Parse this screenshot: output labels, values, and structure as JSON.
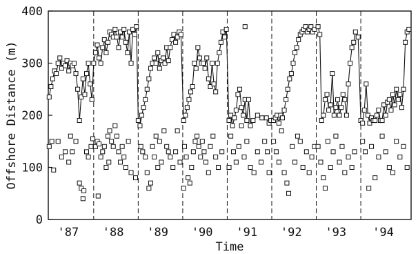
{
  "chart_data": {
    "type": "scatter",
    "title": "",
    "xlabel": "Time",
    "ylabel": "Offshore Distance (m)",
    "ylim": [
      0,
      400
    ],
    "yticks": [
      0,
      100,
      200,
      300,
      400
    ],
    "xlim": [
      1986.6,
      1994.75
    ],
    "categories": [
      "'87",
      "'88",
      "'89",
      "'90",
      "'91",
      "'92",
      "'93",
      "'94"
    ],
    "year_boundaries": [
      1987.62,
      1988.62,
      1989.62,
      1990.62,
      1991.62,
      1992.62,
      1993.62
    ],
    "grid": false,
    "marker": "open-square",
    "series": [
      {
        "connected": true,
        "x": [
          1986.62,
          1986.66,
          1986.7,
          1986.74,
          1986.78,
          1986.82,
          1986.86,
          1986.9,
          1986.94,
          1986.98,
          1987.02,
          1987.06,
          1987.1,
          1987.14,
          1987.18,
          1987.22,
          1987.26,
          1987.3,
          1987.34,
          1987.38,
          1987.42,
          1987.46,
          1987.5,
          1987.54,
          1987.58,
          1987.62,
          1987.66,
          1987.7,
          1987.74,
          1987.78,
          1987.82,
          1987.86,
          1987.9,
          1987.94,
          1987.98,
          1988.02,
          1988.06,
          1988.1,
          1988.14,
          1988.18,
          1988.22,
          1988.26,
          1988.3,
          1988.34,
          1988.38,
          1988.42,
          1988.46,
          1988.5,
          1988.54,
          1988.58,
          1988.62,
          1988.66,
          1988.7,
          1988.74,
          1988.78,
          1988.82,
          1988.86,
          1988.9,
          1988.94,
          1988.98,
          1989.02,
          1989.06,
          1989.1,
          1989.14,
          1989.18,
          1989.22,
          1989.26,
          1989.3,
          1989.34,
          1989.38,
          1989.42,
          1989.46,
          1989.5,
          1989.54,
          1989.58,
          1989.64,
          1989.68,
          1989.72,
          1989.76,
          1989.8,
          1989.84,
          1989.88,
          1989.92,
          1989.96,
          1990.0,
          1990.04,
          1990.08,
          1990.12,
          1990.16,
          1990.2,
          1990.24,
          1990.28,
          1990.32,
          1990.36,
          1990.4,
          1990.44,
          1990.48,
          1990.52,
          1990.56,
          1990.6,
          1990.66,
          1990.7,
          1990.74,
          1990.78,
          1990.82,
          1990.86,
          1990.9,
          1990.94,
          1990.98,
          1991.02,
          1991.06,
          1991.1,
          1991.14,
          1991.2,
          1991.3,
          1991.4,
          1991.5,
          1991.56,
          1991.6,
          1991.66,
          1991.7,
          1991.74,
          1991.78,
          1991.82,
          1991.86,
          1991.9,
          1991.94,
          1991.98,
          1992.02,
          1992.06,
          1992.1,
          1992.14,
          1992.18,
          1992.22,
          1992.26,
          1992.3,
          1992.34,
          1992.38,
          1992.42,
          1992.46,
          1992.5,
          1992.54,
          1992.58,
          1992.66,
          1992.7,
          1992.74,
          1992.78,
          1992.82,
          1992.86,
          1992.9,
          1992.94,
          1992.98,
          1993.02,
          1993.06,
          1993.1,
          1993.14,
          1993.18,
          1993.22,
          1993.26,
          1993.3,
          1993.34,
          1993.38,
          1993.42,
          1993.46,
          1993.5,
          1993.56,
          1993.62,
          1993.66,
          1993.7,
          1993.74,
          1993.78,
          1993.82,
          1993.86,
          1993.9,
          1993.94,
          1993.98,
          1994.02,
          1994.06,
          1994.1,
          1994.14,
          1994.18,
          1994.22,
          1994.26,
          1994.3,
          1994.34,
          1994.38,
          1994.42,
          1994.46,
          1994.5,
          1994.54,
          1994.58,
          1994.62,
          1994.66,
          1994.7
        ],
        "y": [
          235,
          255,
          270,
          285,
          280,
          300,
          310,
          290,
          300,
          295,
          305,
          285,
          300,
          295,
          300,
          280,
          250,
          190,
          235,
          270,
          240,
          280,
          300,
          260,
          230,
          300,
          320,
          335,
          310,
          300,
          330,
          345,
          320,
          340,
          360,
          355,
          350,
          365,
          350,
          330,
          360,
          350,
          365,
          340,
          320,
          360,
          300,
          365,
          355,
          370,
          190,
          180,
          200,
          215,
          230,
          250,
          270,
          290,
          300,
          310,
          300,
          320,
          290,
          305,
          310,
          300,
          330,
          305,
          330,
          345,
          355,
          340,
          350,
          360,
          355,
          190,
          200,
          215,
          230,
          245,
          255,
          300,
          290,
          330,
          310,
          300,
          300,
          290,
          310,
          270,
          255,
          300,
          260,
          245,
          300,
          320,
          340,
          360,
          350,
          365,
          190,
          200,
          180,
          195,
          210,
          240,
          250,
          215,
          200,
          230,
          190,
          230,
          180,
          190,
          200,
          195,
          195,
          185,
          190,
          190,
          195,
          200,
          185,
          200,
          195,
          210,
          230,
          250,
          270,
          280,
          300,
          320,
          330,
          345,
          355,
          360,
          365,
          370,
          360,
          365,
          370,
          360,
          365,
          370,
          355,
          190,
          200,
          230,
          240,
          210,
          220,
          280,
          200,
          215,
          230,
          200,
          215,
          240,
          230,
          200,
          260,
          300,
          330,
          340,
          360,
          350,
          190,
          185,
          210,
          260,
          200,
          185,
          195,
          190,
          190,
          200,
          210,
          190,
          190,
          220,
          200,
          225,
          230,
          210,
          240,
          220,
          250,
          230,
          240,
          215,
          250,
          340,
          360,
          365
        ],
        "y_note": ""
      }
    ],
    "scatter_points": [
      [
        1986.62,
        140
      ],
      [
        1986.68,
        150
      ],
      [
        1986.72,
        95
      ],
      [
        1986.82,
        150
      ],
      [
        1986.9,
        120
      ],
      [
        1986.98,
        130
      ],
      [
        1987.06,
        110
      ],
      [
        1987.1,
        160
      ],
      [
        1987.14,
        130
      ],
      [
        1987.22,
        150
      ],
      [
        1987.3,
        70
      ],
      [
        1987.34,
        60
      ],
      [
        1987.38,
        40
      ],
      [
        1987.4,
        55
      ],
      [
        1987.46,
        130
      ],
      [
        1987.5,
        120
      ],
      [
        1987.56,
        140
      ],
      [
        1987.6,
        155
      ],
      [
        1987.66,
        140
      ],
      [
        1987.7,
        150
      ],
      [
        1987.74,
        145
      ],
      [
        1987.78,
        120
      ],
      [
        1987.82,
        130
      ],
      [
        1987.86,
        140
      ],
      [
        1987.9,
        100
      ],
      [
        1987.94,
        160
      ],
      [
        1987.98,
        170
      ],
      [
        1988.02,
        150
      ],
      [
        1988.06,
        140
      ],
      [
        1988.1,
        180
      ],
      [
        1988.14,
        160
      ],
      [
        1988.18,
        130
      ],
      [
        1988.22,
        110
      ],
      [
        1988.26,
        140
      ],
      [
        1988.3,
        120
      ],
      [
        1988.34,
        100
      ],
      [
        1988.4,
        150
      ],
      [
        1988.46,
        90
      ],
      [
        1988.56,
        80
      ],
      [
        1987.72,
        45
      ],
      [
        1987.96,
        110
      ],
      [
        1988.68,
        140
      ],
      [
        1988.72,
        130
      ],
      [
        1988.78,
        120
      ],
      [
        1988.82,
        90
      ],
      [
        1988.86,
        60
      ],
      [
        1988.9,
        70
      ],
      [
        1988.94,
        140
      ],
      [
        1988.98,
        120
      ],
      [
        1989.02,
        160
      ],
      [
        1989.06,
        100
      ],
      [
        1989.1,
        150
      ],
      [
        1989.14,
        110
      ],
      [
        1989.2,
        170
      ],
      [
        1989.26,
        140
      ],
      [
        1989.3,
        130
      ],
      [
        1989.34,
        120
      ],
      [
        1989.4,
        100
      ],
      [
        1989.46,
        130
      ],
      [
        1989.5,
        170
      ],
      [
        1989.56,
        110
      ],
      [
        1989.66,
        140
      ],
      [
        1989.7,
        120
      ],
      [
        1989.74,
        80
      ],
      [
        1989.78,
        70
      ],
      [
        1989.82,
        100
      ],
      [
        1989.86,
        130
      ],
      [
        1989.9,
        150
      ],
      [
        1989.94,
        160
      ],
      [
        1989.98,
        140
      ],
      [
        1990.02,
        120
      ],
      [
        1990.06,
        150
      ],
      [
        1990.1,
        130
      ],
      [
        1990.14,
        110
      ],
      [
        1990.2,
        90
      ],
      [
        1990.24,
        140
      ],
      [
        1990.3,
        160
      ],
      [
        1990.36,
        120
      ],
      [
        1990.42,
        100
      ],
      [
        1990.5,
        130
      ],
      [
        1989.64,
        60
      ],
      [
        1990.66,
        100
      ],
      [
        1990.7,
        160
      ],
      [
        1990.76,
        130
      ],
      [
        1990.82,
        110
      ],
      [
        1990.88,
        140
      ],
      [
        1990.94,
        180
      ],
      [
        1991.0,
        120
      ],
      [
        1991.06,
        150
      ],
      [
        1991.14,
        100
      ],
      [
        1991.22,
        90
      ],
      [
        1991.3,
        130
      ],
      [
        1991.38,
        110
      ],
      [
        1991.46,
        150
      ],
      [
        1991.52,
        130
      ],
      [
        1991.56,
        90
      ],
      [
        1991.02,
        370
      ],
      [
        1991.66,
        150
      ],
      [
        1991.72,
        130
      ],
      [
        1991.78,
        110
      ],
      [
        1991.84,
        170
      ],
      [
        1991.9,
        90
      ],
      [
        1991.96,
        70
      ],
      [
        1992.0,
        50
      ],
      [
        1992.08,
        140
      ],
      [
        1992.14,
        110
      ],
      [
        1992.2,
        160
      ],
      [
        1992.26,
        150
      ],
      [
        1992.32,
        100
      ],
      [
        1992.4,
        130
      ],
      [
        1992.46,
        90
      ],
      [
        1992.52,
        120
      ],
      [
        1992.58,
        140
      ],
      [
        1992.66,
        140
      ],
      [
        1992.72,
        110
      ],
      [
        1992.78,
        80
      ],
      [
        1992.82,
        60
      ],
      [
        1992.88,
        150
      ],
      [
        1992.94,
        100
      ],
      [
        1993.0,
        130
      ],
      [
        1993.06,
        160
      ],
      [
        1993.14,
        110
      ],
      [
        1993.2,
        140
      ],
      [
        1993.26,
        90
      ],
      [
        1993.34,
        120
      ],
      [
        1993.42,
        100
      ],
      [
        1993.48,
        130
      ],
      [
        1993.66,
        150
      ],
      [
        1993.72,
        130
      ],
      [
        1993.8,
        60
      ],
      [
        1993.86,
        140
      ],
      [
        1993.94,
        80
      ],
      [
        1994.02,
        120
      ],
      [
        1994.1,
        160
      ],
      [
        1994.18,
        130
      ],
      [
        1994.26,
        100
      ],
      [
        1994.34,
        90
      ],
      [
        1994.42,
        150
      ],
      [
        1994.5,
        120
      ],
      [
        1994.58,
        140
      ],
      [
        1994.66,
        100
      ]
    ]
  }
}
